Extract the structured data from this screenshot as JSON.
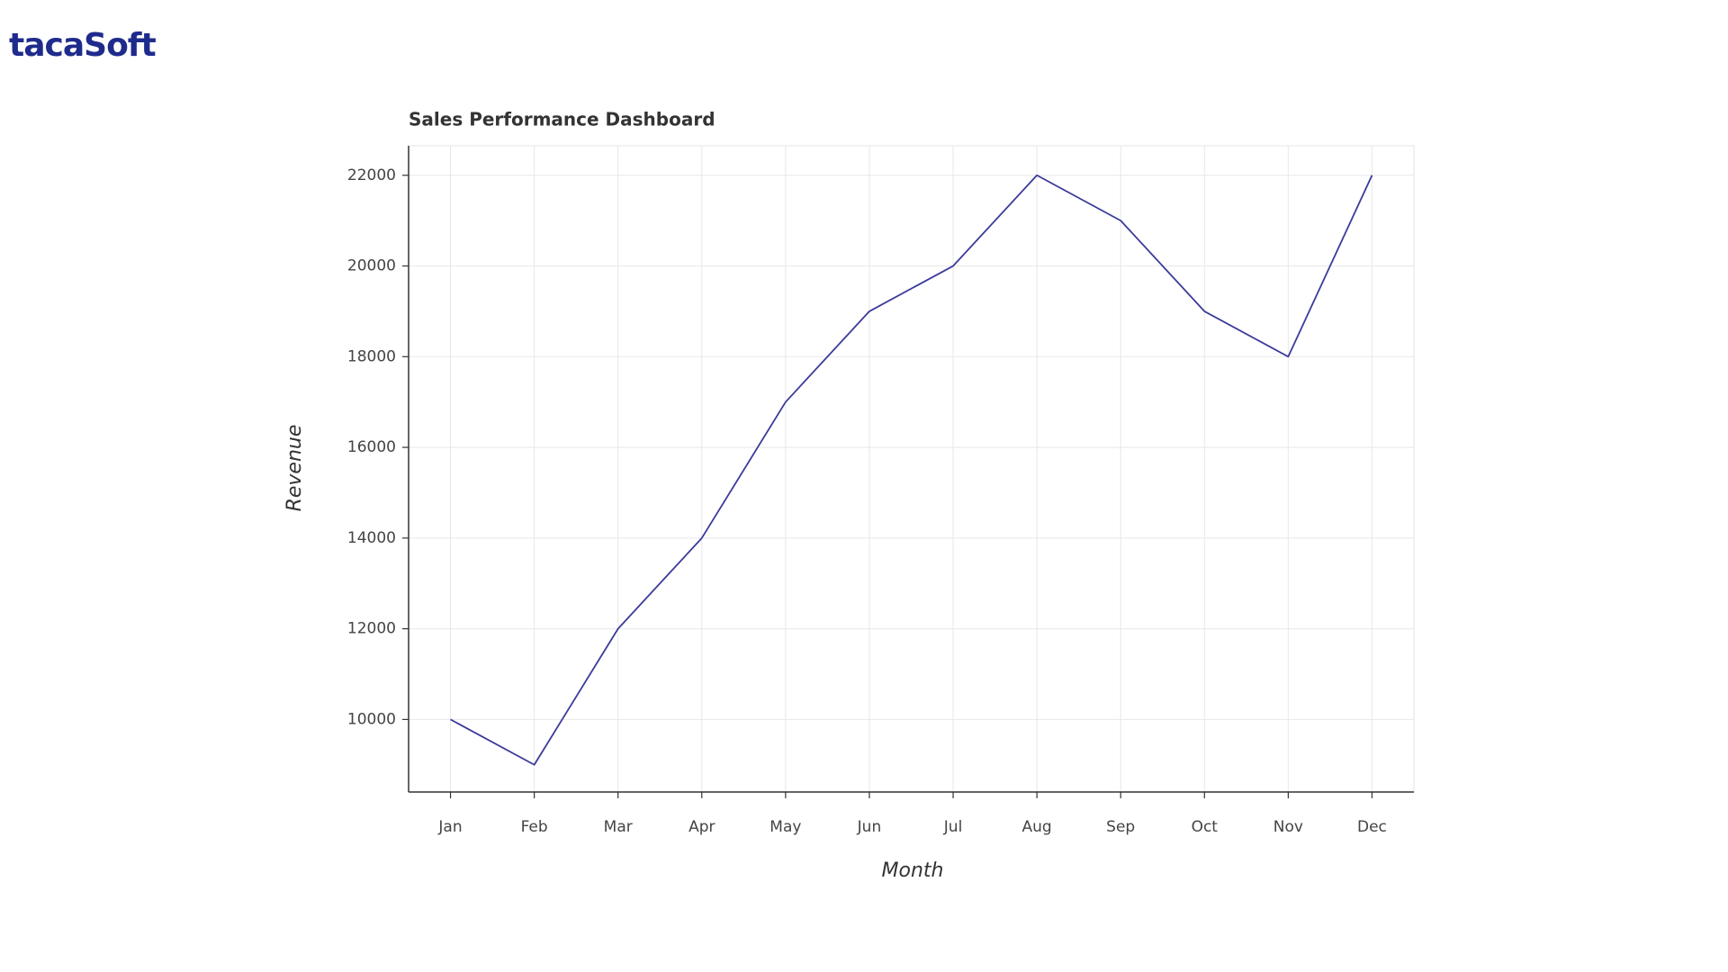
{
  "logo": "tacaSoft",
  "chart_data": {
    "type": "line",
    "title": "Sales Performance Dashboard",
    "x_label": "Month",
    "y_label": "Revenue",
    "categories": [
      "Jan",
      "Feb",
      "Mar",
      "Apr",
      "May",
      "Jun",
      "Jul",
      "Aug",
      "Sep",
      "Oct",
      "Nov",
      "Dec"
    ],
    "values": [
      10000,
      9000,
      12000,
      14000,
      17000,
      19000,
      20000,
      22000,
      21000,
      19000,
      18000,
      22000
    ],
    "color": "#3b3b9a",
    "ylim": [
      8400,
      22650
    ],
    "yticks": [
      10000,
      12000,
      14000,
      16000,
      18000,
      20000,
      22000
    ],
    "grid": true
  }
}
